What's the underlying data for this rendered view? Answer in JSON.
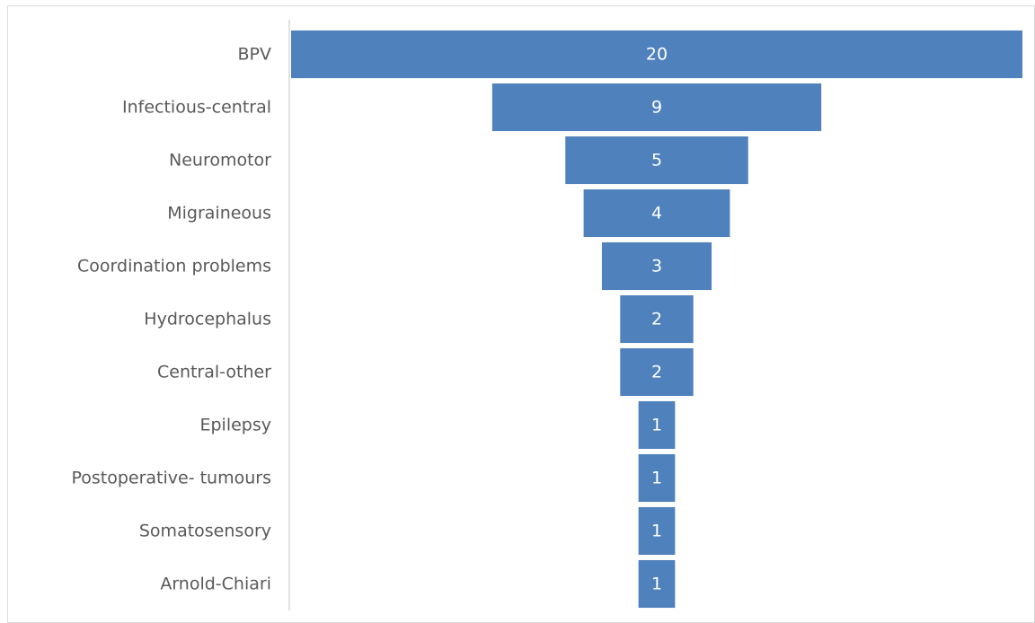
{
  "chart_data": {
    "type": "funnel",
    "categories": [
      "BPV",
      "Infectious-central",
      "Neuromotor",
      "Migraineous",
      "Coordination problems",
      "Hydrocephalus",
      "Central-other",
      "Epilepsy",
      "Postoperative- tumours",
      "Somatosensory",
      "Arnold-Chiari"
    ],
    "values": [
      20,
      9,
      5,
      4,
      3,
      2,
      2,
      1,
      1,
      1,
      1
    ],
    "color": "#4f81bd"
  }
}
